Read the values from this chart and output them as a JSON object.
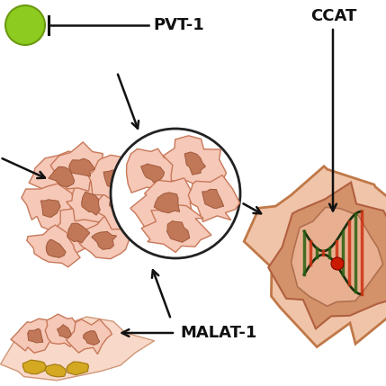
{
  "bg_color": "#ffffff",
  "pvt1_label": "PVT-1",
  "malat1_label": "MALAT-1",
  "ccat_label": "CCAT",
  "green_color": "#8ecb20",
  "green_edge": "#6a9a10",
  "cell_outer_fill": "#f0c4a8",
  "cell_outer_edge": "#c87848",
  "cell_mid_fill": "#d4956a",
  "cell_mid_edge": "#b06040",
  "cell_nuc_fill": "#c08060",
  "cell_nuc_edge": "#8a5030",
  "cancer_fill": "#f5c8b8",
  "cancer_edge": "#c87858",
  "cancer_nucleus_fill": "#c07858",
  "cancer_nucleus_edge": "#a05838",
  "tissue_fill": "#f8d8c8",
  "tissue_edge": "#d09878",
  "yellow_fill": "#d4a820",
  "yellow_edge": "#a07810",
  "dna_green": "#2a6010",
  "dna_red": "#cc2010",
  "arrow_color": "#111111",
  "label_color": "#111111",
  "font_size": 13,
  "font_weight": "bold"
}
